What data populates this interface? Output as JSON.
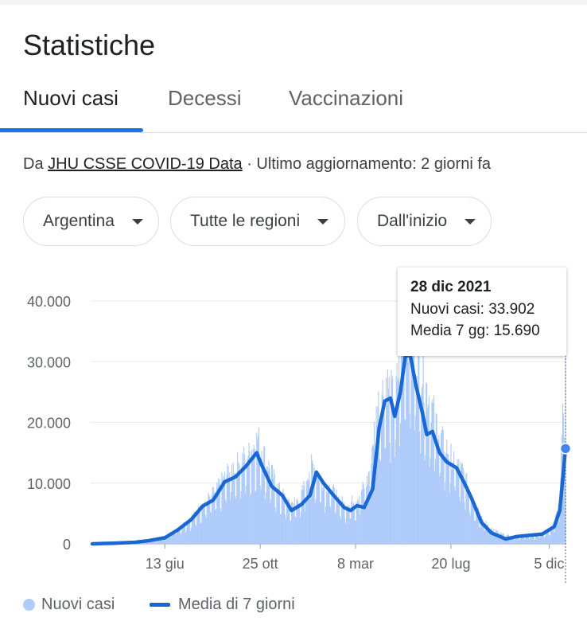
{
  "header": {
    "title": "Statistiche"
  },
  "tabs": [
    {
      "label": "Nuovi casi",
      "active": true
    },
    {
      "label": "Decessi",
      "active": false
    },
    {
      "label": "Vaccinazioni",
      "active": false
    }
  ],
  "source": {
    "prefix": "Da ",
    "link": "JHU CSSE COVID-19 Data",
    "suffix": " · Ultimo aggiornamento: 2 giorni fa"
  },
  "filters": [
    {
      "label": "Argentina",
      "icon": "caret-down-icon"
    },
    {
      "label": "Tutte le regioni",
      "icon": "caret-down-icon"
    },
    {
      "label": "Dall'inizio",
      "icon": "caret-down-icon"
    }
  ],
  "tooltip": {
    "date": "28 dic 2021",
    "new_cases": "Nuovi casi: 33.902",
    "avg": "Media 7 gg: 15.690"
  },
  "legend": [
    {
      "label": "Nuovi casi",
      "marker": "dot",
      "color": "#aecbfa"
    },
    {
      "label": "Media di 7 giorni",
      "marker": "line",
      "color": "#1967d2"
    }
  ],
  "colors": {
    "accent": "#1a73e8",
    "bars": "#aecbfa",
    "line": "#1967d2"
  },
  "chart_data": {
    "type": "area",
    "x_start": "2020-03-03",
    "x_end": "2021-12-28",
    "y_ticks": [
      "0",
      "10.000",
      "20.000",
      "30.000",
      "40.000"
    ],
    "x_ticks": [
      {
        "label": "13 giu",
        "date": "2020-06-13"
      },
      {
        "label": "25 ott",
        "date": "2020-10-25"
      },
      {
        "label": "8 mar",
        "date": "2021-03-08"
      },
      {
        "label": "20 lug",
        "date": "2021-07-20"
      },
      {
        "label": "5 dic",
        "date": "2021-12-05"
      }
    ],
    "ylim": [
      0,
      40000
    ],
    "grid": true,
    "legend_position": "bottom",
    "series": [
      {
        "name": "Nuovi casi",
        "type": "bar",
        "points": [
          [
            "2020-03-03",
            0
          ],
          [
            "2020-04-01",
            150
          ],
          [
            "2020-05-01",
            250
          ],
          [
            "2020-05-20",
            600
          ],
          [
            "2020-06-13",
            1200
          ],
          [
            "2020-07-01",
            2600
          ],
          [
            "2020-07-20",
            4200
          ],
          [
            "2020-08-05",
            6500
          ],
          [
            "2020-08-25",
            9000
          ],
          [
            "2020-09-10",
            12000
          ],
          [
            "2020-09-25",
            13500
          ],
          [
            "2020-10-10",
            15000
          ],
          [
            "2020-10-22",
            17500
          ],
          [
            "2020-11-05",
            13000
          ],
          [
            "2020-11-20",
            9000
          ],
          [
            "2020-12-05",
            6500
          ],
          [
            "2020-12-20",
            7500
          ],
          [
            "2021-01-05",
            13500
          ],
          [
            "2021-01-20",
            10500
          ],
          [
            "2021-02-05",
            8500
          ],
          [
            "2021-02-20",
            6500
          ],
          [
            "2021-03-08",
            7200
          ],
          [
            "2021-03-25",
            10500
          ],
          [
            "2021-04-08",
            23000
          ],
          [
            "2021-04-20",
            27000
          ],
          [
            "2021-05-01",
            24000
          ],
          [
            "2021-05-18",
            36000
          ],
          [
            "2021-05-28",
            33000
          ],
          [
            "2021-06-10",
            28000
          ],
          [
            "2021-06-25",
            22000
          ],
          [
            "2021-07-08",
            17000
          ],
          [
            "2021-07-20",
            14500
          ],
          [
            "2021-08-05",
            12000
          ],
          [
            "2021-08-20",
            7500
          ],
          [
            "2021-09-05",
            3500
          ],
          [
            "2021-09-25",
            1800
          ],
          [
            "2021-10-15",
            1100
          ],
          [
            "2021-11-05",
            1300
          ],
          [
            "2021-11-25",
            1600
          ],
          [
            "2021-12-10",
            2500
          ],
          [
            "2021-12-20",
            7000
          ],
          [
            "2021-12-28",
            33902
          ]
        ]
      },
      {
        "name": "Media di 7 giorni",
        "type": "line",
        "points": [
          [
            "2020-03-03",
            0
          ],
          [
            "2020-04-01",
            100
          ],
          [
            "2020-05-01",
            250
          ],
          [
            "2020-05-20",
            500
          ],
          [
            "2020-06-13",
            1000
          ],
          [
            "2020-07-01",
            2300
          ],
          [
            "2020-07-20",
            4000
          ],
          [
            "2020-08-05",
            6200
          ],
          [
            "2020-08-20",
            7200
          ],
          [
            "2020-09-05",
            10200
          ],
          [
            "2020-09-20",
            11000
          ],
          [
            "2020-10-05",
            12800
          ],
          [
            "2020-10-20",
            15000
          ],
          [
            "2020-10-27",
            13000
          ],
          [
            "2020-11-10",
            9500
          ],
          [
            "2020-11-25",
            8000
          ],
          [
            "2020-12-08",
            5500
          ],
          [
            "2020-12-22",
            6500
          ],
          [
            "2021-01-03",
            8000
          ],
          [
            "2021-01-12",
            11800
          ],
          [
            "2021-01-22",
            10000
          ],
          [
            "2021-02-05",
            8000
          ],
          [
            "2021-02-20",
            6000
          ],
          [
            "2021-03-01",
            5500
          ],
          [
            "2021-03-10",
            6300
          ],
          [
            "2021-03-20",
            6000
          ],
          [
            "2021-04-01",
            9000
          ],
          [
            "2021-04-10",
            19000
          ],
          [
            "2021-04-18",
            23500
          ],
          [
            "2021-04-26",
            24000
          ],
          [
            "2021-05-02",
            21000
          ],
          [
            "2021-05-10",
            25000
          ],
          [
            "2021-05-17",
            31000
          ],
          [
            "2021-05-24",
            31000
          ],
          [
            "2021-06-01",
            26000
          ],
          [
            "2021-06-10",
            21500
          ],
          [
            "2021-06-16",
            18000
          ],
          [
            "2021-06-24",
            18500
          ],
          [
            "2021-07-04",
            15000
          ],
          [
            "2021-07-14",
            13500
          ],
          [
            "2021-07-28",
            12500
          ],
          [
            "2021-08-08",
            10000
          ],
          [
            "2021-08-18",
            7500
          ],
          [
            "2021-09-01",
            3500
          ],
          [
            "2021-09-15",
            1800
          ],
          [
            "2021-10-05",
            800
          ],
          [
            "2021-10-20",
            1200
          ],
          [
            "2021-11-08",
            1400
          ],
          [
            "2021-11-25",
            1600
          ],
          [
            "2021-12-12",
            2800
          ],
          [
            "2021-12-20",
            5500
          ],
          [
            "2021-12-28",
            15690
          ]
        ]
      }
    ]
  }
}
